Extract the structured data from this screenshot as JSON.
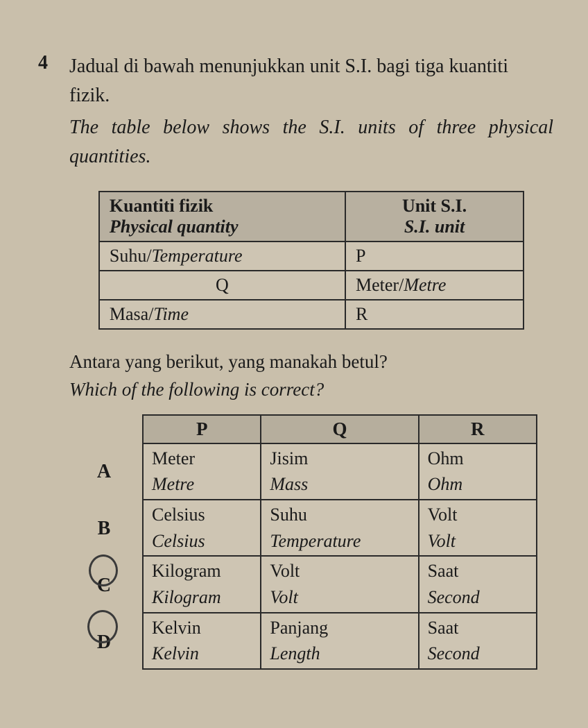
{
  "question": {
    "number": "4",
    "text_ms": "Jadual di bawah menunjukkan unit S.I. bagi tiga kuantiti fizik.",
    "text_en": "The table below shows the S.I. units of three physical quantities."
  },
  "table1": {
    "header": {
      "col1_ms": "Kuantiti fizik",
      "col1_en": "Physical quantity",
      "col2_ms": "Unit S.I.",
      "col2_en": "S.I. unit"
    },
    "rows": [
      {
        "c1_ms": "Suhu/",
        "c1_en": "Temperature",
        "c2_ms": "P",
        "c2_en": ""
      },
      {
        "c1_ms": "Q",
        "c1_en": "",
        "c2_ms": "Meter/",
        "c2_en": "Metre"
      },
      {
        "c1_ms": "Masa/",
        "c1_en": "Time",
        "c2_ms": "R",
        "c2_en": ""
      }
    ]
  },
  "sub_question": {
    "text_ms": "Antara yang berikut, yang manakah betul?",
    "text_en": "Which of the following is correct?"
  },
  "table2": {
    "header": {
      "p": "P",
      "q": "Q",
      "r": "R"
    },
    "options": [
      {
        "label": "A",
        "circled": false,
        "p_ms": "Meter",
        "p_en": "Metre",
        "q_ms": "Jisim",
        "q_en": "Mass",
        "r_ms": "Ohm",
        "r_en": "Ohm"
      },
      {
        "label": "B",
        "circled": false,
        "p_ms": "Celsius",
        "p_en": "Celsius",
        "q_ms": "Suhu",
        "q_en": "Temperature",
        "r_ms": "Volt",
        "r_en": "Volt"
      },
      {
        "label": "C",
        "circled": true,
        "p_ms": "Kilogram",
        "p_en": "Kilogram",
        "q_ms": "Volt",
        "q_en": "Volt",
        "r_ms": "Saat",
        "r_en": "Second"
      },
      {
        "label": "D",
        "circled": true,
        "p_ms": "Kelvin",
        "p_en": "Kelvin",
        "q_ms": "Panjang",
        "q_en": "Length",
        "r_ms": "Saat",
        "r_en": "Second"
      }
    ]
  },
  "colors": {
    "background": "#c9bfab",
    "table_header_bg": "#b8b0a0",
    "table_cell_bg": "#cec5b3",
    "border": "#2a2a2a",
    "text": "#1a1a1a"
  },
  "typography": {
    "font_family": "Times New Roman",
    "question_number_size": 28,
    "body_text_size": 28,
    "table_text_size": 26
  }
}
